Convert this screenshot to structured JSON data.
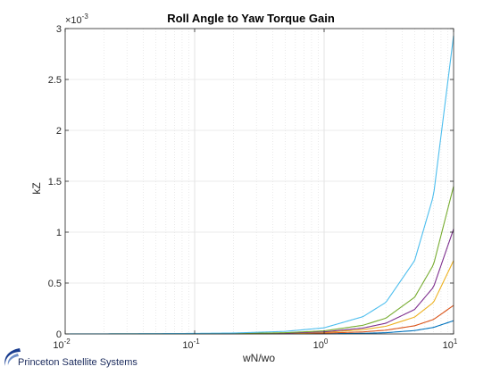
{
  "footer": {
    "brand": "Princeton Satellite Systems"
  },
  "chart_data": {
    "type": "line",
    "title": "Roll Angle to Yaw Torque Gain",
    "xlabel": "wN/wo",
    "ylabel": "kZ",
    "xscale": "log",
    "xlim": [
      0.01,
      10
    ],
    "ylim": [
      0,
      3
    ],
    "y_multiplier_label": "×10",
    "y_multiplier_exponent": "-3",
    "x_ticks": [
      {
        "value": 0.01,
        "base": "10",
        "exp": "-2"
      },
      {
        "value": 0.1,
        "base": "10",
        "exp": "-1"
      },
      {
        "value": 1,
        "base": "10",
        "exp": "0"
      },
      {
        "value": 10,
        "base": "10",
        "exp": "1"
      }
    ],
    "y_ticks": [
      {
        "value": 0,
        "label": "0"
      },
      {
        "value": 0.5,
        "label": "0.5"
      },
      {
        "value": 1,
        "label": "1"
      },
      {
        "value": 1.5,
        "label": "1.5"
      },
      {
        "value": 2,
        "label": "2"
      },
      {
        "value": 2.5,
        "label": "2.5"
      },
      {
        "value": 3,
        "label": "3"
      }
    ],
    "grid": true,
    "legend": "none",
    "x": [
      0.01,
      0.02,
      0.05,
      0.1,
      0.2,
      0.5,
      1,
      2,
      3,
      5,
      7,
      10
    ],
    "series": [
      {
        "color": "#0072BD",
        "values": [
          0.0,
          0.0,
          0.0,
          0.0,
          0.0,
          0.001,
          0.002,
          0.006,
          0.012,
          0.033,
          0.064,
          0.13
        ]
      },
      {
        "color": "#D95319",
        "values": [
          0.0,
          0.0,
          0.0,
          0.0,
          0.001,
          0.003,
          0.008,
          0.02,
          0.037,
          0.08,
          0.142,
          0.28
        ]
      },
      {
        "color": "#EDB120",
        "values": [
          0.0,
          0.0,
          0.0,
          0.001,
          0.002,
          0.006,
          0.015,
          0.042,
          0.075,
          0.165,
          0.31,
          0.72
        ]
      },
      {
        "color": "#7E2F8E",
        "values": [
          0.0,
          0.0,
          0.0,
          0.001,
          0.002,
          0.008,
          0.02,
          0.058,
          0.105,
          0.24,
          0.46,
          1.03
        ]
      },
      {
        "color": "#77AC30",
        "values": [
          0.0,
          0.0,
          0.001,
          0.002,
          0.004,
          0.012,
          0.03,
          0.085,
          0.155,
          0.36,
          0.68,
          1.45
        ]
      },
      {
        "color": "#4DBEEE",
        "values": [
          0.0,
          0.001,
          0.003,
          0.005,
          0.009,
          0.025,
          0.06,
          0.17,
          0.31,
          0.72,
          1.36,
          2.93
        ]
      }
    ]
  }
}
